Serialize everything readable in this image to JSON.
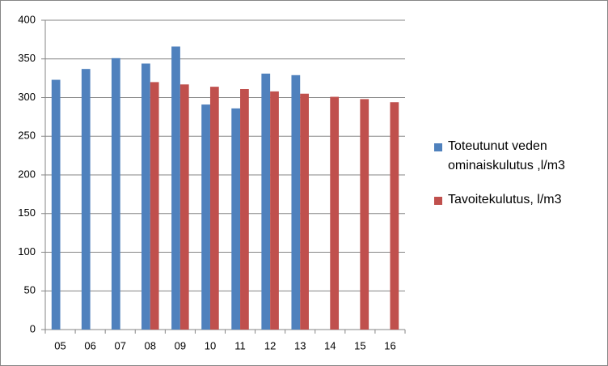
{
  "chart_data": {
    "type": "bar",
    "categories": [
      "05",
      "06",
      "07",
      "08",
      "09",
      "10",
      "11",
      "12",
      "13",
      "14",
      "15",
      "16"
    ],
    "series": [
      {
        "name": "Toteutunut veden ominaiskulutus ,l/m3",
        "color": "#4f81bd",
        "values": [
          323,
          337,
          351,
          344,
          366,
          291,
          286,
          331,
          329,
          null,
          null,
          null
        ]
      },
      {
        "name": "Tavoitekulutus, l/m3",
        "color": "#c0504d",
        "values": [
          null,
          null,
          null,
          320,
          317,
          314,
          311,
          308,
          305,
          301,
          298,
          294
        ]
      }
    ],
    "ylim": [
      0,
      400
    ],
    "yticks": [
      0,
      50,
      100,
      150,
      200,
      250,
      300,
      350,
      400
    ],
    "grid": true,
    "legend": "right"
  }
}
